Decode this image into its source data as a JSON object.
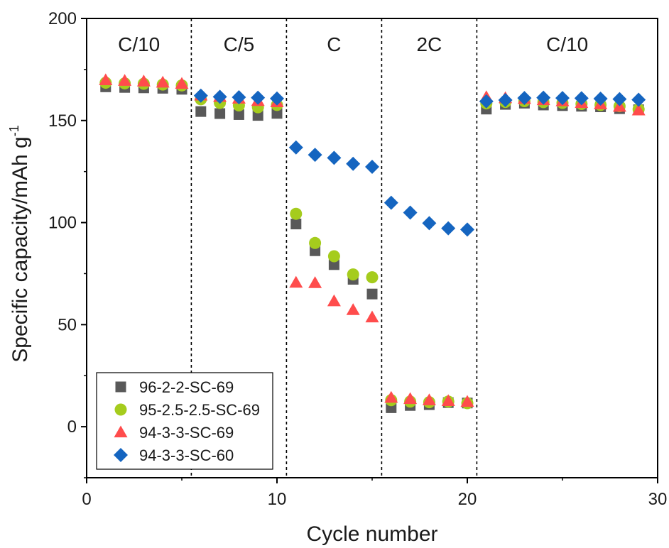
{
  "chart_data": {
    "type": "scatter",
    "xlabel": "Cycle number",
    "ylabel": "Specific capacity/mAh g",
    "ylabel_sup": "-1",
    "xlim": [
      0,
      30
    ],
    "ylim": [
      -25,
      200
    ],
    "xticks": [
      0,
      10,
      20,
      30
    ],
    "yticks": [
      0,
      50,
      100,
      150,
      200
    ],
    "grid": false,
    "legend_position": "bottom-left",
    "regions": [
      {
        "label": "C/10",
        "start": 0,
        "end": 5.5
      },
      {
        "label": "C/5",
        "start": 5.5,
        "end": 10.5
      },
      {
        "label": "C",
        "start": 10.5,
        "end": 15.5
      },
      {
        "label": "2C",
        "start": 15.5,
        "end": 20.5
      },
      {
        "label": "C/10",
        "start": 20.5,
        "end": 30
      }
    ],
    "dividers": [
      5.5,
      10.5,
      15.5,
      20.5
    ],
    "series": [
      {
        "name": "96-2-2-SC-69",
        "marker": "square",
        "color": "#595959",
        "x": [
          1,
          2,
          3,
          4,
          5,
          6,
          7,
          8,
          9,
          10,
          11,
          12,
          13,
          14,
          15,
          16,
          17,
          18,
          19,
          20,
          21,
          22,
          23,
          24,
          25,
          26,
          27,
          28,
          29
        ],
        "y": [
          166.5,
          166.2,
          166.0,
          165.8,
          165.3,
          154.4,
          153.4,
          152.9,
          152.5,
          153.5,
          99.3,
          86.2,
          79.4,
          72.2,
          65.0,
          9.3,
          10.4,
          10.8,
          11.8,
          11.6,
          155.6,
          157.9,
          158.5,
          157.6,
          157.3,
          157.0,
          156.7,
          155.8,
          155.3
        ]
      },
      {
        "name": "95-2.5-2.5-SC-69",
        "marker": "circle",
        "color": "#a5cc1d",
        "x": [
          1,
          2,
          3,
          4,
          5,
          6,
          7,
          8,
          9,
          10,
          11,
          12,
          13,
          14,
          15,
          16,
          17,
          18,
          19,
          20,
          21,
          22,
          23,
          24,
          25,
          26,
          27,
          28,
          29
        ],
        "y": [
          168.5,
          168.2,
          168.0,
          167.6,
          167.2,
          160.4,
          158.6,
          157.4,
          156.5,
          157.6,
          104.3,
          90.0,
          83.5,
          74.6,
          73.2,
          13.0,
          12.3,
          12.0,
          12.3,
          11.5,
          158.4,
          159.1,
          159.5,
          159.0,
          158.6,
          158.1,
          157.6,
          157.0,
          155.5
        ]
      },
      {
        "name": "94-3-3-SC-69",
        "marker": "triangle",
        "color": "#ff4c4c",
        "x": [
          1,
          2,
          3,
          4,
          5,
          6,
          7,
          8,
          9,
          10,
          11,
          12,
          13,
          14,
          15,
          16,
          17,
          18,
          19,
          20,
          21,
          22,
          23,
          24,
          25,
          26,
          27,
          28,
          29
        ],
        "y": [
          169.8,
          169.5,
          169.2,
          168.6,
          168.0,
          162.3,
          161.6,
          160.8,
          159.6,
          159.0,
          70.6,
          70.4,
          61.5,
          57.2,
          53.6,
          14.2,
          13.6,
          13.0,
          12.6,
          12.2,
          161.5,
          161.0,
          160.6,
          160.0,
          159.5,
          158.6,
          158.0,
          156.8,
          155.0
        ]
      },
      {
        "name": "94-3-3-SC-60",
        "marker": "diamond",
        "color": "#1565c0",
        "x": [
          6,
          7,
          8,
          9,
          10,
          11,
          12,
          13,
          14,
          15,
          16,
          17,
          18,
          19,
          20,
          21,
          22,
          23,
          24,
          25,
          26,
          27,
          28,
          29
        ],
        "y": [
          162.2,
          161.6,
          161.4,
          161.2,
          160.8,
          136.8,
          133.2,
          131.7,
          128.8,
          127.3,
          109.7,
          104.9,
          99.7,
          97.2,
          96.6,
          159.4,
          160.0,
          161.0,
          161.2,
          161.0,
          160.9,
          160.7,
          160.5,
          160.2
        ]
      }
    ]
  }
}
